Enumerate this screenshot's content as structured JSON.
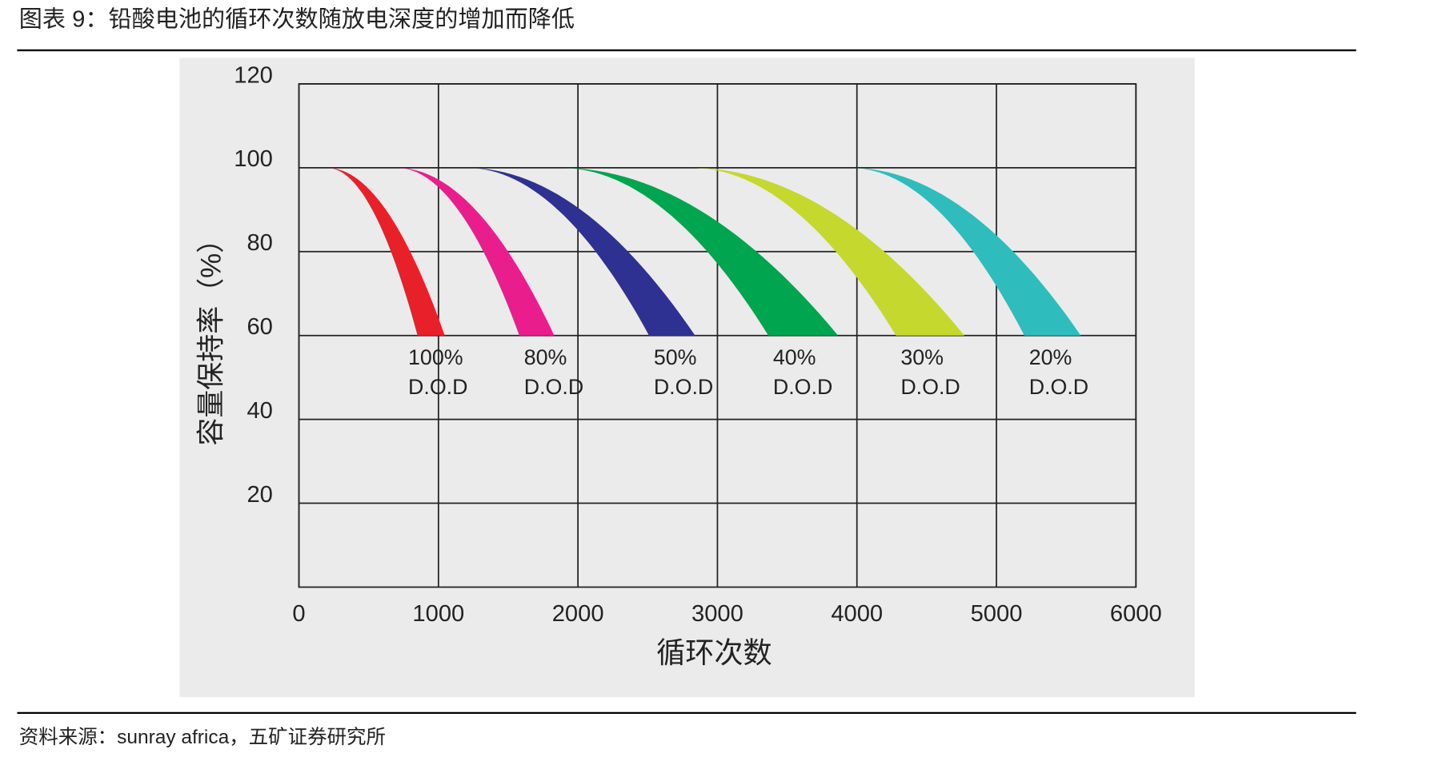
{
  "header": {
    "title": "图表 9：铅酸电池的循环次数随放电深度的增加而降低"
  },
  "chart_data": {
    "type": "band",
    "xlabel": "循环次数",
    "ylabel": "容量保持率（%）",
    "xlim": [
      0,
      6000
    ],
    "xticks": [
      0,
      1000,
      2000,
      3000,
      4000,
      5000,
      6000
    ],
    "ylim": [
      0,
      120
    ],
    "yticks": [
      20,
      40,
      60,
      80,
      100,
      120
    ],
    "grid": true,
    "y_range": [
      100,
      60
    ],
    "series": [
      {
        "name": "100%",
        "unit_label": "D.O.D",
        "color": "#e8202a",
        "x_start": 200,
        "x_end": [
          850,
          1045
        ]
      },
      {
        "name": "80%",
        "unit_label": "D.O.D",
        "color": "#e91e8c",
        "x_start": 700,
        "x_end": [
          1580,
          1830
        ]
      },
      {
        "name": "50%",
        "unit_label": "D.O.D",
        "color": "#2e3192",
        "x_start": 1200,
        "x_end": [
          2510,
          2840
        ]
      },
      {
        "name": "40%",
        "unit_label": "D.O.D",
        "color": "#00a54f",
        "x_start": 1870,
        "x_end": [
          3365,
          3865
        ]
      },
      {
        "name": "30%",
        "unit_label": "D.O.D",
        "color": "#c4d82e",
        "x_start": 2810,
        "x_end": [
          4280,
          4770
        ]
      },
      {
        "name": "20%",
        "unit_label": "D.O.D",
        "color": "#2ebdbc",
        "x_start": 3950,
        "x_end": [
          5200,
          5605
        ]
      }
    ]
  },
  "footer": {
    "source": "资料来源：sunray africa，五矿证券研究所"
  }
}
